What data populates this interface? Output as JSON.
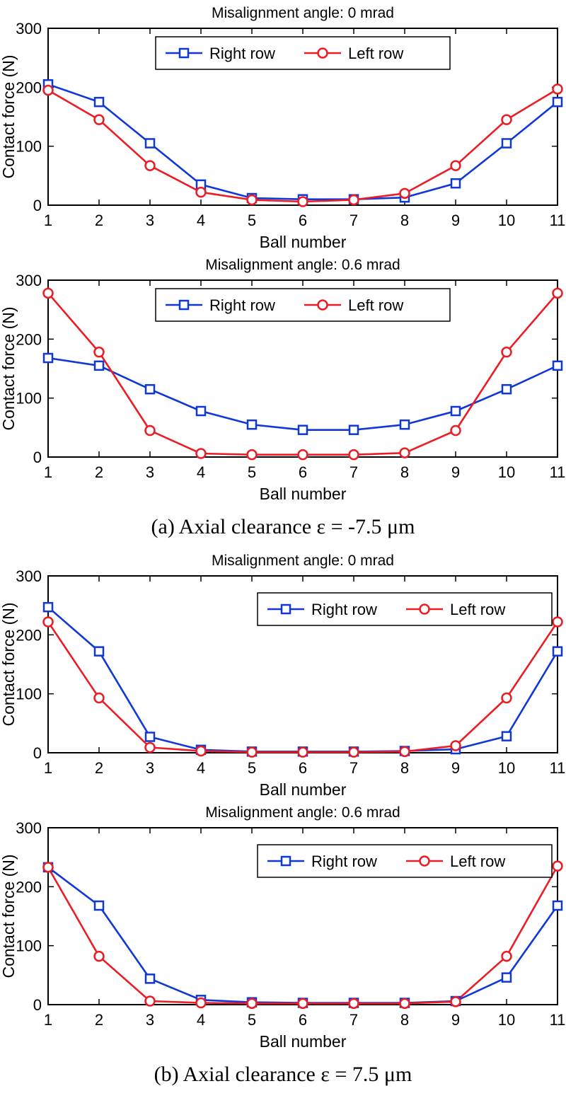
{
  "captions": {
    "a": "(a) Axial clearance ε = -7.5 μm",
    "b": "(b) Axial clearance ε = 7.5 μm"
  },
  "colors": {
    "right_row": "#1038D8",
    "left_row": "#EC1C24",
    "axis": "#000000"
  },
  "chart_data": [
    {
      "type": "line",
      "title": "Misalignment angle: 0 mrad",
      "xlabel": "Ball number",
      "ylabel": "Contact force (N)",
      "x": [
        1,
        2,
        3,
        4,
        5,
        6,
        7,
        8,
        9,
        10,
        11
      ],
      "xticks": [
        1,
        2,
        3,
        4,
        5,
        6,
        7,
        8,
        9,
        10,
        11
      ],
      "ylim": [
        0,
        300
      ],
      "yticks": [
        0,
        100,
        200,
        300
      ],
      "legend_position": "top-center",
      "series": [
        {
          "name": "Right row",
          "marker": "square",
          "color": "#1038D8",
          "values": [
            205,
            175,
            105,
            35,
            12,
            10,
            10,
            13,
            37,
            105,
            175
          ]
        },
        {
          "name": "Left row",
          "marker": "circle",
          "color": "#EC1C24",
          "values": [
            195,
            145,
            67,
            22,
            9,
            6,
            9,
            20,
            67,
            145,
            197
          ]
        }
      ]
    },
    {
      "type": "line",
      "title": "Misalignment angle: 0.6 mrad",
      "xlabel": "Ball number",
      "ylabel": "Contact force (N)",
      "x": [
        1,
        2,
        3,
        4,
        5,
        6,
        7,
        8,
        9,
        10,
        11
      ],
      "xticks": [
        1,
        2,
        3,
        4,
        5,
        6,
        7,
        8,
        9,
        10,
        11
      ],
      "ylim": [
        0,
        300
      ],
      "yticks": [
        0,
        100,
        200,
        300
      ],
      "legend_position": "top-center",
      "series": [
        {
          "name": "Right row",
          "marker": "square",
          "color": "#1038D8",
          "values": [
            168,
            155,
            115,
            78,
            55,
            46,
            46,
            55,
            78,
            115,
            155
          ]
        },
        {
          "name": "Left row",
          "marker": "circle",
          "color": "#EC1C24",
          "values": [
            278,
            178,
            45,
            6,
            4,
            4,
            4,
            7,
            45,
            178,
            278
          ]
        }
      ]
    },
    {
      "type": "line",
      "title": "Misalignment angle: 0 mrad",
      "xlabel": "Ball number",
      "ylabel": "Contact force (N)",
      "x": [
        1,
        2,
        3,
        4,
        5,
        6,
        7,
        8,
        9,
        10,
        11
      ],
      "xticks": [
        1,
        2,
        3,
        4,
        5,
        6,
        7,
        8,
        9,
        10,
        11
      ],
      "ylim": [
        0,
        300
      ],
      "yticks": [
        0,
        100,
        200,
        300
      ],
      "legend_position": "top-right",
      "series": [
        {
          "name": "Right row",
          "marker": "square",
          "color": "#1038D8",
          "values": [
            247,
            172,
            27,
            5,
            2,
            2,
            2,
            3,
            6,
            28,
            172
          ]
        },
        {
          "name": "Left row",
          "marker": "circle",
          "color": "#EC1C24",
          "values": [
            222,
            93,
            9,
            3,
            1,
            1,
            1,
            2,
            12,
            93,
            222
          ]
        }
      ]
    },
    {
      "type": "line",
      "title": "Misalignment angle: 0.6 mrad",
      "xlabel": "Ball number",
      "ylabel": "Contact force (N)",
      "x": [
        1,
        2,
        3,
        4,
        5,
        6,
        7,
        8,
        9,
        10,
        11
      ],
      "xticks": [
        1,
        2,
        3,
        4,
        5,
        6,
        7,
        8,
        9,
        10,
        11
      ],
      "ylim": [
        0,
        300
      ],
      "yticks": [
        0,
        100,
        200,
        300
      ],
      "legend_position": "top-right",
      "series": [
        {
          "name": "Right row",
          "marker": "square",
          "color": "#1038D8",
          "values": [
            233,
            168,
            44,
            8,
            4,
            3,
            3,
            3,
            6,
            46,
            168
          ]
        },
        {
          "name": "Left row",
          "marker": "circle",
          "color": "#EC1C24",
          "values": [
            233,
            82,
            6,
            3,
            2,
            2,
            2,
            2,
            5,
            82,
            235
          ]
        }
      ]
    }
  ]
}
